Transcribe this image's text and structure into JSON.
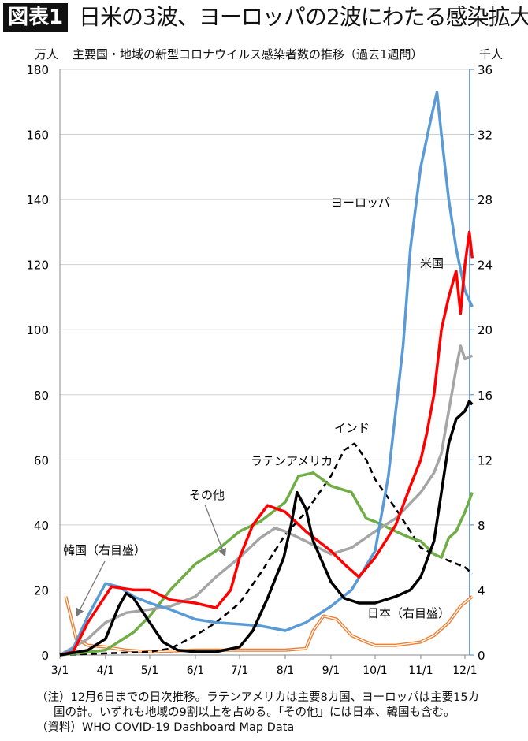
{
  "header": {
    "badge": "図表1",
    "title": "日米の3波、ヨーロッパの2波にわたる感染拡大"
  },
  "chart_data": {
    "type": "line",
    "title": "主要国・地域の新型コロナウイルス感染者数の推移（過去1週間）",
    "ylabel_left": "万人",
    "ylabel_right": "千人",
    "ylim_left": [
      0,
      180
    ],
    "ylim_right": [
      0,
      36
    ],
    "yticks_left": [
      0,
      20,
      40,
      60,
      80,
      100,
      120,
      140,
      160,
      180
    ],
    "yticks_right": [
      0,
      4,
      8,
      12,
      16,
      20,
      24,
      28,
      32,
      36
    ],
    "xticks": [
      "3/1",
      "4/1",
      "5/1",
      "6/1",
      "7/1",
      "8/1",
      "9/1",
      "10/1",
      "11/1",
      "12/1"
    ],
    "grid": true,
    "colors": {
      "europe": "#5b9bd5",
      "us": "#ff0000",
      "latam": "#70ad47",
      "other": "#a5a5a5",
      "india": "#000000",
      "japan": "#000000",
      "korea": "#ed7d31",
      "right_axis": "#4a7ebb"
    },
    "series": [
      {
        "name": "ヨーロッパ",
        "axis": "left",
        "key": "europe",
        "x": [
          "3/1",
          "3/10",
          "3/20",
          "4/1",
          "4/10",
          "4/20",
          "5/1",
          "5/15",
          "6/1",
          "6/15",
          "7/1",
          "7/15",
          "8/1",
          "8/15",
          "9/1",
          "9/15",
          "10/1",
          "10/10",
          "10/20",
          "10/25",
          "11/1",
          "11/8",
          "11/12",
          "11/15",
          "11/20",
          "11/25",
          "12/1",
          "12/6"
        ],
        "y": [
          0,
          2,
          12,
          22,
          21,
          18,
          16,
          14,
          11,
          10,
          9.5,
          9,
          7.5,
          10,
          15,
          20,
          32,
          55,
          95,
          125,
          150,
          165,
          173,
          160,
          140,
          125,
          112,
          107
        ]
      },
      {
        "name": "米国",
        "axis": "left",
        "key": "us",
        "x": [
          "3/1",
          "3/10",
          "3/20",
          "4/5",
          "4/20",
          "5/1",
          "5/15",
          "6/1",
          "6/15",
          "6/25",
          "7/1",
          "7/10",
          "7/20",
          "8/1",
          "8/15",
          "9/1",
          "9/10",
          "9/20",
          "10/1",
          "10/15",
          "10/25",
          "11/1",
          "11/5",
          "11/10",
          "11/15",
          "11/20",
          "11/25",
          "11/28",
          "12/1",
          "12/4",
          "12/6"
        ],
        "y": [
          0,
          1,
          10,
          21,
          20,
          20,
          17,
          16,
          14.5,
          20,
          30,
          40,
          46,
          44,
          38,
          32,
          28,
          24,
          30,
          40,
          52,
          60,
          68,
          80,
          100,
          110,
          118,
          105,
          120,
          130,
          122
        ]
      },
      {
        "name": "ラテンアメリカ",
        "axis": "left",
        "key": "latam",
        "x": [
          "3/1",
          "4/1",
          "4/20",
          "5/1",
          "5/15",
          "6/1",
          "6/15",
          "7/1",
          "7/15",
          "8/1",
          "8/10",
          "8/20",
          "9/1",
          "9/15",
          "9/25",
          "10/1",
          "10/15",
          "10/25",
          "11/1",
          "11/10",
          "11/15",
          "11/20",
          "11/25",
          "12/1",
          "12/6"
        ],
        "y": [
          0,
          1.5,
          7,
          12,
          20,
          28,
          32,
          38,
          41,
          47,
          55,
          56,
          52,
          50,
          42,
          41,
          38,
          36,
          35,
          31,
          30,
          36,
          38,
          44,
          50
        ]
      },
      {
        "name": "その他",
        "axis": "left",
        "key": "other",
        "x": [
          "3/1",
          "3/20",
          "4/1",
          "4/15",
          "5/1",
          "5/15",
          "6/1",
          "6/15",
          "7/1",
          "7/15",
          "7/25",
          "8/1",
          "8/15",
          "9/1",
          "9/15",
          "10/1",
          "10/15",
          "11/1",
          "11/10",
          "11/15",
          "11/20",
          "11/25",
          "11/28",
          "12/1",
          "12/6"
        ],
        "y": [
          0,
          5,
          10,
          13,
          14,
          15,
          18,
          24,
          30,
          36,
          39,
          38,
          35,
          31,
          33,
          38,
          42,
          50,
          56,
          62,
          75,
          88,
          95,
          91,
          92
        ]
      },
      {
        "name": "インド",
        "axis": "left",
        "key": "india",
        "dashed": true,
        "x": [
          "3/1",
          "4/1",
          "5/1",
          "5/15",
          "6/1",
          "6/15",
          "7/1",
          "7/15",
          "8/1",
          "8/15",
          "9/1",
          "9/10",
          "9/17",
          "9/25",
          "10/1",
          "10/15",
          "11/1",
          "11/10",
          "11/20",
          "12/1",
          "12/6"
        ],
        "y": [
          0,
          0.5,
          1,
          2,
          6,
          10,
          16,
          25,
          37,
          44,
          55,
          63,
          65,
          60,
          54,
          45,
          33,
          31,
          29,
          27,
          25
        ]
      },
      {
        "name": "日本（右目盛）",
        "axis": "right",
        "key": "japan",
        "x": [
          "3/1",
          "3/20",
          "4/1",
          "4/10",
          "4/15",
          "4/20",
          "5/1",
          "5/10",
          "5/20",
          "6/1",
          "6/15",
          "7/1",
          "7/10",
          "7/20",
          "7/31",
          "8/5",
          "8/9",
          "8/15",
          "8/20",
          "9/1",
          "9/10",
          "9/20",
          "10/1",
          "10/15",
          "10/25",
          "11/1",
          "11/10",
          "11/15",
          "11/20",
          "11/25",
          "12/1",
          "12/4",
          "12/6"
        ],
        "y": [
          0,
          0.3,
          1,
          3,
          3.8,
          3.5,
          2,
          0.8,
          0.3,
          0.2,
          0.2,
          0.5,
          1.5,
          3.5,
          6,
          8,
          10,
          9,
          7,
          4.5,
          3.5,
          3.2,
          3.2,
          3.6,
          4,
          4.8,
          7,
          10,
          13,
          14.5,
          15,
          15.6,
          15.4
        ]
      },
      {
        "name": "韓国（右目盛）",
        "axis": "right",
        "key": "korea",
        "x": [
          "3/5",
          "3/8",
          "3/12",
          "3/20",
          "4/1",
          "4/15",
          "5/1",
          "6/1",
          "7/1",
          "8/1",
          "8/15",
          "8/20",
          "8/27",
          "9/5",
          "9/15",
          "9/25",
          "10/1",
          "10/15",
          "11/1",
          "11/10",
          "11/20",
          "11/28",
          "12/6"
        ],
        "y": [
          3.6,
          2.5,
          1,
          0.6,
          0.5,
          0.3,
          0.2,
          0.3,
          0.3,
          0.3,
          0.4,
          1.5,
          2.4,
          2.2,
          1.2,
          0.8,
          0.6,
          0.6,
          0.8,
          1.2,
          2,
          3,
          3.6
        ]
      }
    ],
    "annotations": [
      {
        "key": "europe",
        "text": "ヨーロッパ"
      },
      {
        "key": "us",
        "text": "米国"
      },
      {
        "key": "india",
        "text": "インド"
      },
      {
        "key": "latam",
        "text": "ラテンアメリカ"
      },
      {
        "key": "other",
        "text": "その他"
      },
      {
        "key": "korea",
        "text": "韓国（右目盛）"
      },
      {
        "key": "japan",
        "text": "日本（右目盛）"
      }
    ]
  },
  "notes": {
    "line1": "（注）12月6日までの日次推移。ラテンアメリカは主要8カ国、ヨーロッパは主要15カ",
    "line2": "国の計。いずれも地域の9割以上を占める。「その他」には日本、韓国も含む。",
    "source": "（資料）WHO COVID-19 Dashboard Map Data"
  }
}
